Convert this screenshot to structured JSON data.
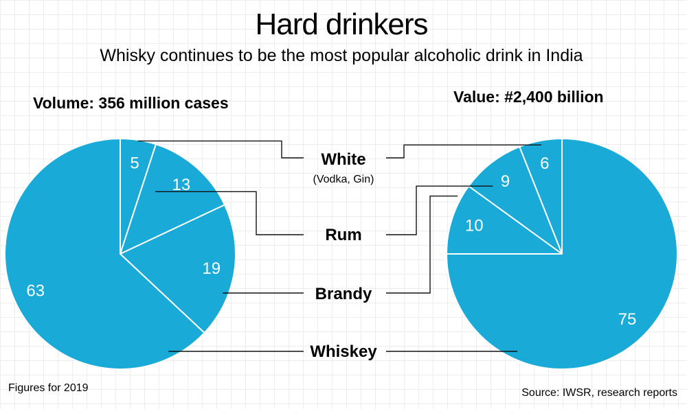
{
  "title": "Hard drinkers",
  "subtitle": "Whisky continues to be the most popular alcoholic drink in India",
  "footnote": "Figures for 2019",
  "source": "Source: IWSR, research reports",
  "colors": {
    "slice": "#19aad8",
    "divider": "#ffffff",
    "leader": "#111111"
  },
  "chart_data": [
    {
      "type": "pie",
      "title": "Volume: 356 million cases",
      "slices": [
        {
          "label": "White",
          "value": 5
        },
        {
          "label": "Rum",
          "value": 13
        },
        {
          "label": "Brandy",
          "value": 19
        },
        {
          "label": "Whiskey",
          "value": 63
        }
      ]
    },
    {
      "type": "pie",
      "title": "Value: #2,400 billion",
      "slices": [
        {
          "label": "White",
          "value": 6
        },
        {
          "label": "Rum",
          "value": 9
        },
        {
          "label": "Brandy",
          "value": 10
        },
        {
          "label": "Whiskey",
          "value": 75
        }
      ]
    }
  ],
  "categories": [
    {
      "name": "White",
      "note": "(Vodka, Gin)"
    },
    {
      "name": "Rum"
    },
    {
      "name": "Brandy"
    },
    {
      "name": "Whiskey"
    }
  ]
}
